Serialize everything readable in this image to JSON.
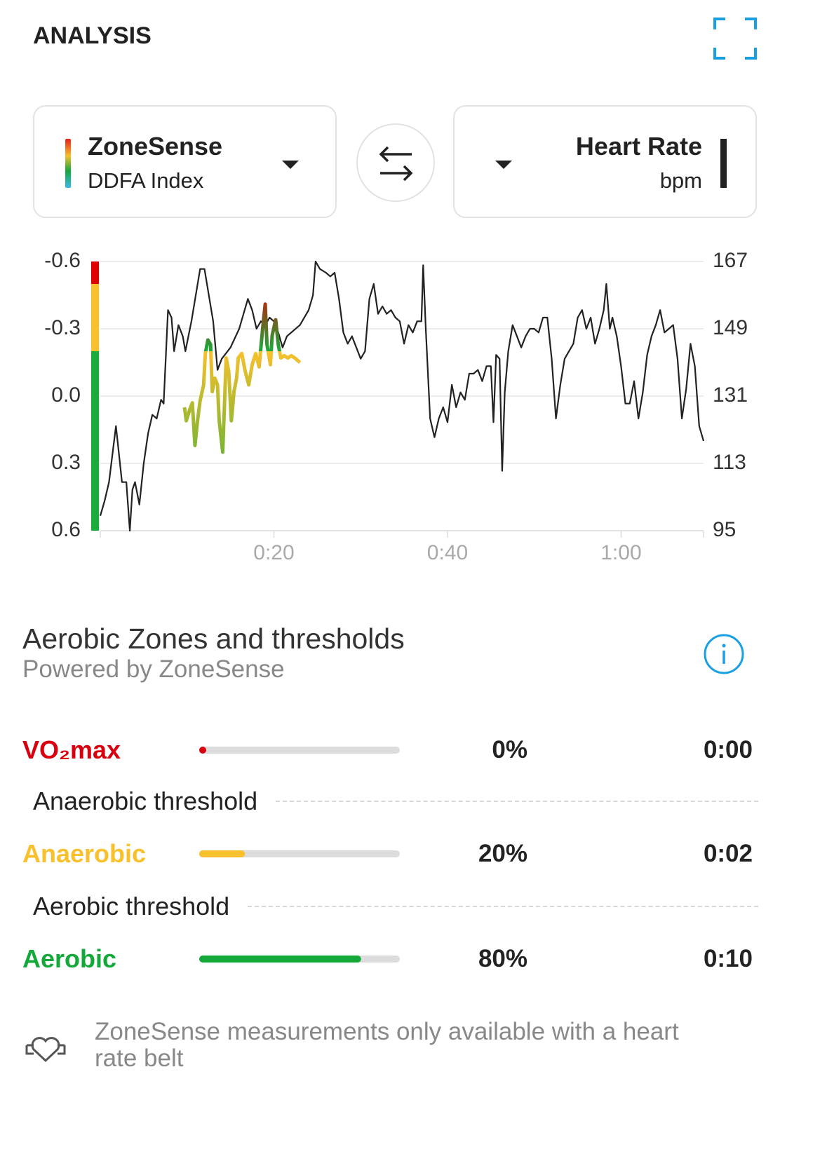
{
  "header": {
    "title": "ANALYSIS"
  },
  "chart_data": {
    "type": "line",
    "ylabel": "DDFA Index",
    "y2label": "bpm",
    "xlim": [
      0,
      69.5
    ],
    "xticks": [
      {
        "value": 20,
        "label": "0:20"
      },
      {
        "value": 40,
        "label": "0:40"
      },
      {
        "value": 60,
        "label": "1:00"
      }
    ],
    "ylim": [
      0.6,
      -0.6
    ],
    "yticks": [
      0.6,
      0.3,
      {
        "value": 0,
        "label": "0.0"
      },
      -0.3,
      -0.6
    ],
    "y2lim": [
      95,
      167
    ],
    "y2ticks": [
      95,
      113,
      131,
      149,
      167
    ],
    "grid": true,
    "zone_bands": [
      {
        "from": 0.6,
        "to": -0.2,
        "color": "#1aab3a"
      },
      {
        "from": -0.2,
        "to": -0.5,
        "color": "#f7c02c"
      },
      {
        "from": -0.5,
        "to": -0.6,
        "color": "#e00000"
      }
    ],
    "series": [
      {
        "name": "ZoneSense",
        "x": [
          9.7,
          9.9,
          10.3,
          10.6,
          10.9,
          11.2,
          11.5,
          11.9,
          12.1,
          12.4,
          12.7,
          12.9,
          13.2,
          13.5,
          13.7,
          14.1,
          14.3,
          14.5,
          14.8,
          15.1,
          15.4,
          15.7,
          15.9,
          16.3,
          16.7,
          17.1,
          17.5,
          17.9,
          18.3,
          18.7,
          19.0,
          19.2,
          19.6,
          19.8,
          20.2,
          20.5,
          20.8,
          21.2,
          21.6,
          22.0,
          22.4,
          23.0
        ],
        "values": [
          0.05,
          0.11,
          0.06,
          0.03,
          0.22,
          0.11,
          0.02,
          -0.05,
          -0.19,
          -0.25,
          -0.23,
          -0.02,
          -0.08,
          -0.05,
          0.11,
          0.25,
          0.05,
          -0.17,
          -0.11,
          0.11,
          -0.02,
          -0.08,
          -0.17,
          -0.19,
          -0.11,
          -0.05,
          -0.14,
          -0.19,
          -0.13,
          -0.3,
          -0.41,
          -0.23,
          -0.14,
          -0.27,
          -0.34,
          -0.23,
          -0.17,
          -0.18,
          -0.17,
          -0.18,
          -0.17,
          -0.15
        ]
      },
      {
        "name": "Heart Rate",
        "axis": "y2",
        "color": "#222222",
        "x": [
          0,
          0.5,
          1,
          1.8,
          2.5,
          3,
          3.4,
          3.7,
          4,
          4.5,
          5,
          5.5,
          6,
          6.5,
          7,
          7.3,
          7.8,
          8.2,
          8.5,
          9,
          9.5,
          9.8,
          10.5,
          11,
          11.5,
          12,
          12.5,
          13,
          13.5,
          14,
          15,
          16,
          17,
          17.5,
          18,
          18.5,
          19,
          19.5,
          20,
          20.5,
          21,
          21.5,
          22,
          23,
          24,
          24.5,
          24.8,
          25.3,
          26,
          26.5,
          27,
          27.5,
          28,
          28.5,
          29,
          29.5,
          30,
          30.5,
          31,
          31.5,
          32,
          32.5,
          33,
          33.5,
          34,
          34.5,
          35,
          35.5,
          36,
          36.5,
          37,
          37.2,
          37.5,
          38,
          38.5,
          39,
          39.5,
          40,
          40.5,
          41,
          41.5,
          42,
          42.5,
          43,
          43.5,
          44,
          44.5,
          45,
          45.3,
          45.6,
          46,
          46.3,
          46.6,
          47,
          47.5,
          48,
          48.5,
          49,
          49.5,
          50,
          50.5,
          51,
          51.5,
          52,
          52.5,
          53,
          53.5,
          54,
          54.5,
          55,
          55.5,
          56,
          56.5,
          57,
          57.5,
          58,
          58.3,
          58.7,
          59,
          59.5,
          60,
          60.5,
          61,
          61.5,
          62,
          62.5,
          63,
          63.5,
          64,
          64.5,
          65,
          65.5,
          66,
          66.5,
          67,
          67.5,
          68,
          68.5,
          69,
          69.5
        ],
        "values": [
          99,
          103,
          108,
          123,
          108,
          108,
          95,
          106,
          108,
          102,
          113,
          121,
          126,
          125,
          130,
          129,
          154,
          152,
          143,
          150,
          147,
          143,
          151,
          158,
          165,
          165,
          158,
          151,
          138,
          141,
          144,
          149,
          157,
          154,
          149,
          151,
          150,
          152,
          151,
          148,
          144,
          147,
          148,
          150,
          154,
          158,
          167,
          165,
          164,
          163,
          164,
          157,
          148,
          145,
          147,
          144,
          141,
          143,
          157,
          161,
          153,
          155,
          153,
          154,
          152,
          151,
          145,
          150,
          148,
          151,
          151,
          166,
          149,
          125,
          120,
          125,
          128,
          124,
          134,
          128,
          132,
          130,
          137,
          137,
          138,
          135,
          139,
          139,
          124,
          142,
          141,
          111,
          132,
          143,
          150,
          147,
          144,
          147,
          149,
          149,
          148,
          152,
          152,
          141,
          125,
          134,
          141,
          143,
          145,
          152,
          154,
          149,
          152,
          145,
          149,
          154,
          161,
          149,
          152,
          147,
          139,
          129,
          129,
          135,
          125,
          132,
          142,
          147,
          150,
          154,
          148,
          149,
          150,
          141,
          125,
          133,
          145,
          139,
          123,
          119
        ]
      }
    ]
  },
  "zones": {
    "title": "Aerobic Zones and thresholds",
    "subtitle": "Powered by ZoneSense",
    "rows": [
      {
        "name": "VO₂max",
        "color": "#d8000f",
        "percent": 0,
        "percent_label": "0%",
        "time": "0:00"
      },
      {
        "name": "Anaerobic",
        "color": "#f7c02c",
        "percent": 20,
        "percent_label": "20%",
        "time": "0:02"
      },
      {
        "name": "Aerobic",
        "color": "#14a83b",
        "percent": 80,
        "percent_label": "80%",
        "time": "0:10"
      }
    ],
    "thresholds": [
      "Anaerobic threshold",
      "Aerobic threshold"
    ]
  },
  "footer": {
    "note": "ZoneSense measurements only available with a heart rate belt"
  }
}
